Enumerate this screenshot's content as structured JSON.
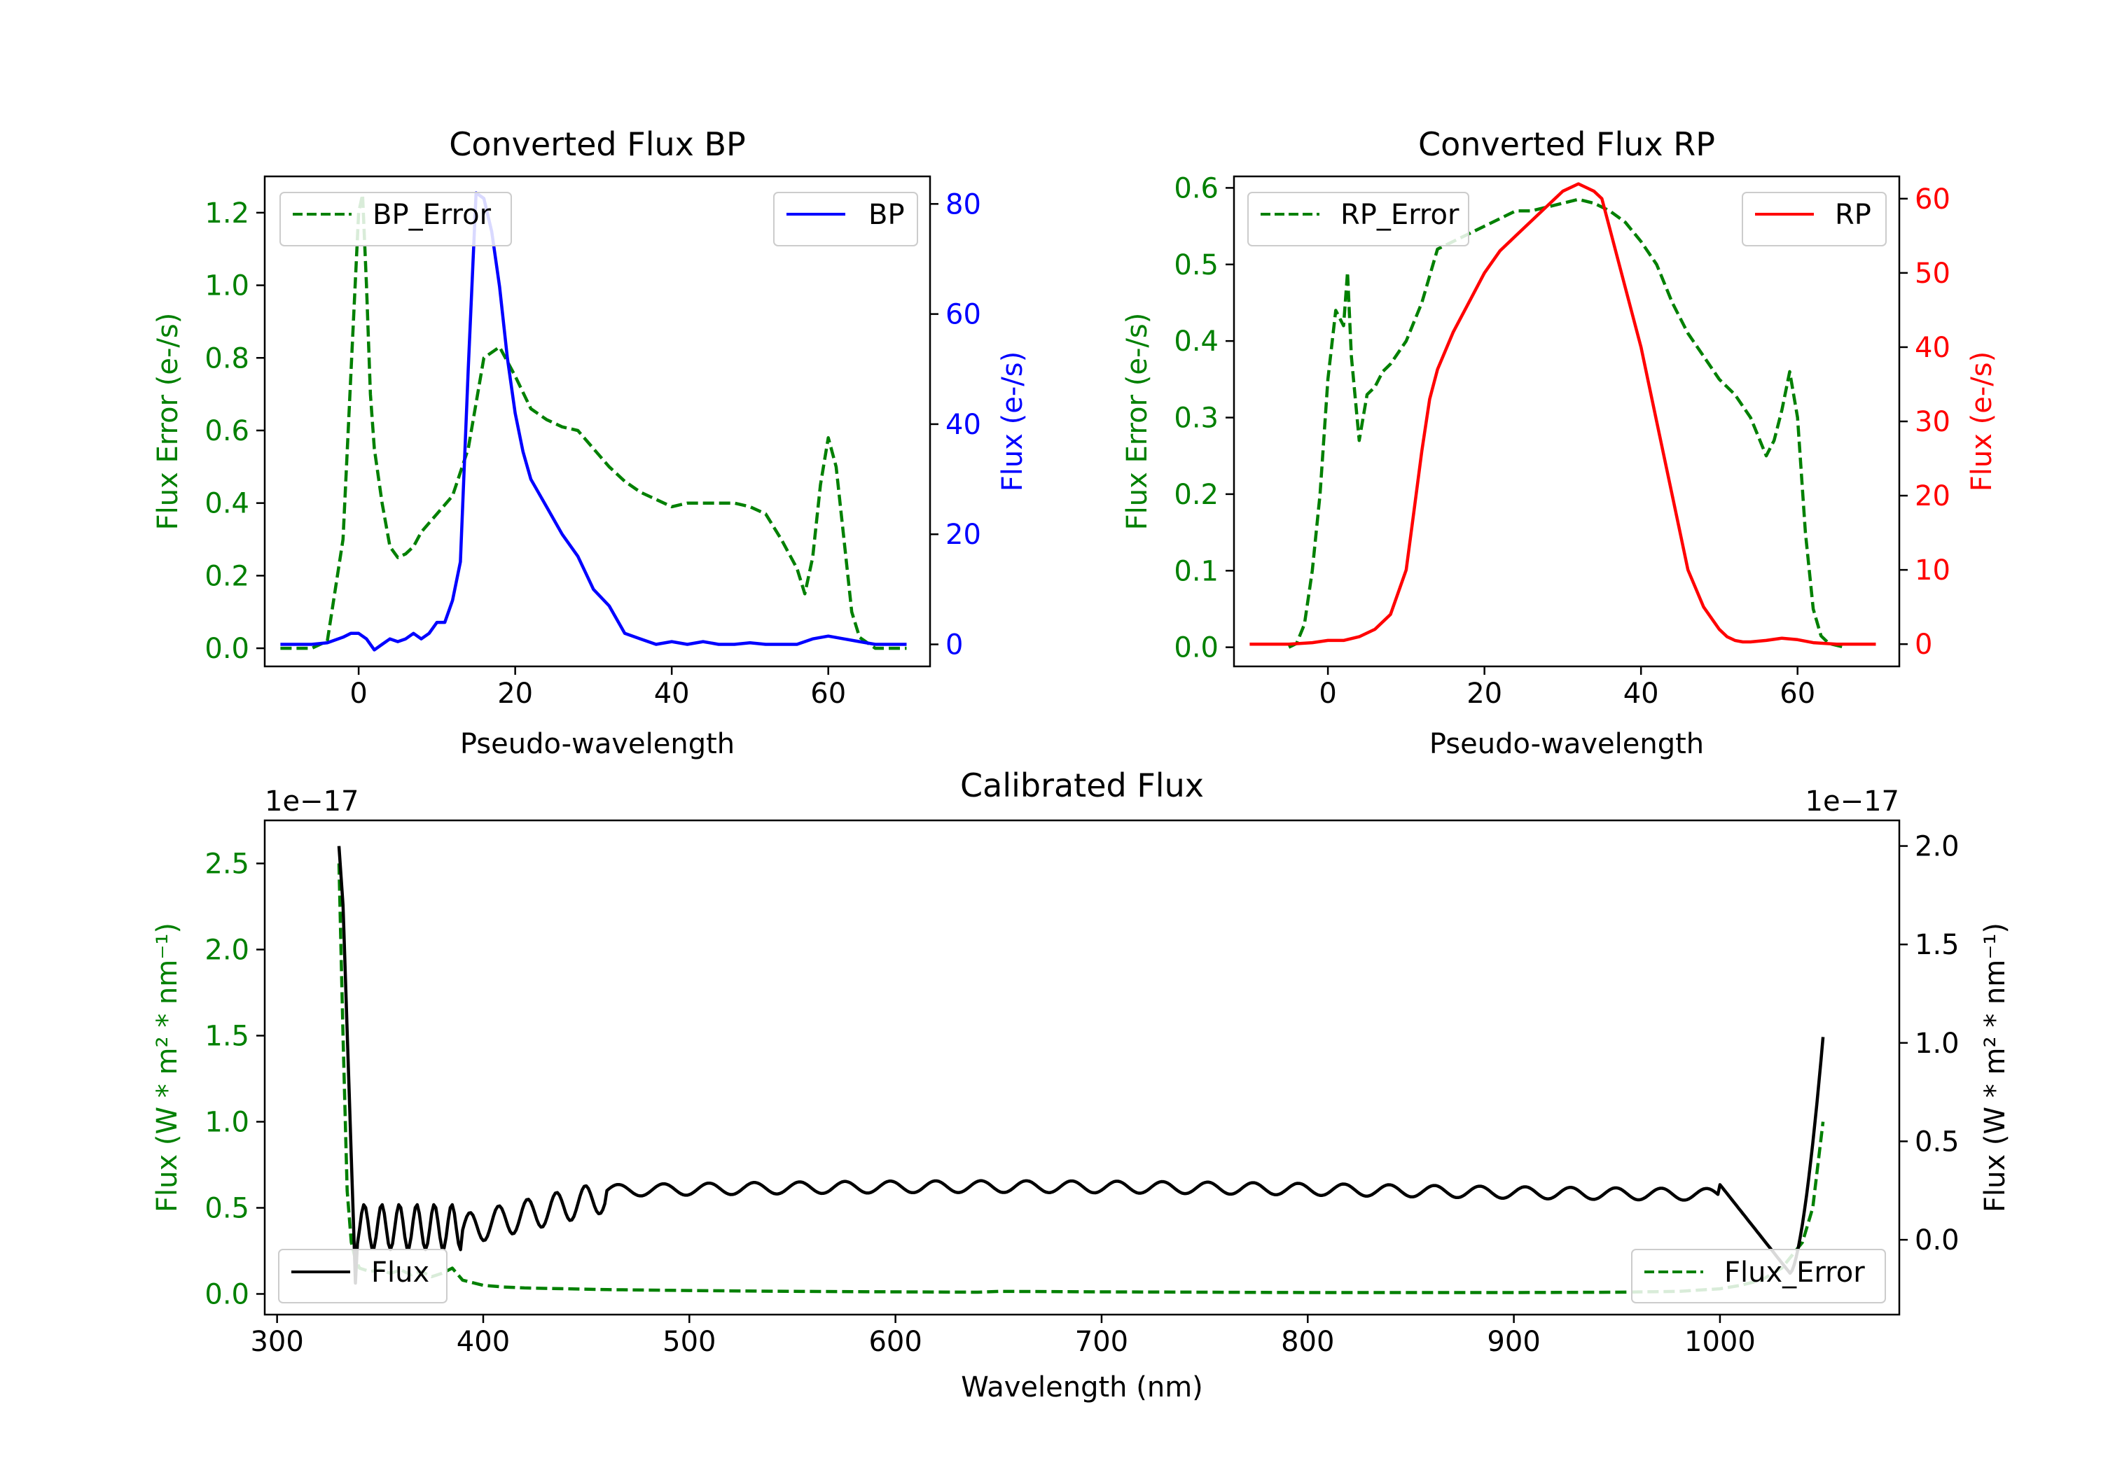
{
  "colors": {
    "green": "#008000",
    "blue": "#0000ff",
    "red": "#ff0000",
    "black": "#000000"
  },
  "chart_data": [
    {
      "type": "line",
      "title": "Converted Flux BP",
      "xlabel": "Pseudo-wavelength",
      "ylabel": "Flux Error (e-/s)",
      "ylabel_right": "Flux (e-/s)",
      "xlim": [
        -12,
        73
      ],
      "ylim": [
        -0.05,
        1.3
      ],
      "ylim_right": [
        -4,
        85
      ],
      "xticks": [
        0,
        20,
        40,
        60
      ],
      "yticks": [
        0.0,
        0.2,
        0.4,
        0.6,
        0.8,
        1.0,
        1.2
      ],
      "yticks_right": [
        0,
        20,
        40,
        60,
        80
      ],
      "legend_left": "BP_Error",
      "legend_right": "BP",
      "series": [
        {
          "name": "BP_Error",
          "axis": "left",
          "color": "#008000",
          "dash": true,
          "x": [
            -10,
            -6,
            -4,
            -2,
            -1,
            0,
            0.5,
            1,
            1.5,
            2,
            3,
            4,
            5,
            6,
            7,
            8,
            10,
            12,
            14,
            16,
            18,
            20,
            22,
            24,
            26,
            28,
            30,
            32,
            34,
            36,
            38,
            40,
            42,
            44,
            46,
            48,
            50,
            52,
            54,
            56,
            57,
            58,
            59,
            60,
            61,
            62,
            63,
            64,
            66,
            68,
            70
          ],
          "y": [
            0,
            0,
            0.02,
            0.3,
            0.75,
            1.2,
            1.25,
            1.0,
            0.7,
            0.55,
            0.4,
            0.28,
            0.25,
            0.26,
            0.28,
            0.32,
            0.37,
            0.42,
            0.55,
            0.8,
            0.83,
            0.75,
            0.66,
            0.63,
            0.61,
            0.6,
            0.55,
            0.5,
            0.46,
            0.43,
            0.41,
            0.39,
            0.4,
            0.4,
            0.4,
            0.4,
            0.39,
            0.37,
            0.3,
            0.22,
            0.15,
            0.25,
            0.45,
            0.58,
            0.5,
            0.3,
            0.1,
            0.03,
            0,
            0,
            0
          ]
        },
        {
          "name": "BP",
          "axis": "right",
          "color": "#0000ff",
          "dash": false,
          "x": [
            -10,
            -6,
            -4,
            -2,
            -1,
            0,
            1,
            2,
            3,
            4,
            5,
            6,
            7,
            8,
            9,
            10,
            11,
            12,
            13,
            14,
            15,
            16,
            17,
            18,
            19,
            20,
            21,
            22,
            24,
            26,
            28,
            30,
            32,
            34,
            36,
            38,
            40,
            42,
            44,
            46,
            48,
            50,
            52,
            54,
            56,
            58,
            60,
            62,
            64,
            66,
            70
          ],
          "y": [
            0,
            0,
            0.3,
            1.3,
            2,
            2,
            1,
            -1,
            0,
            1,
            0.5,
            1,
            2,
            1,
            2,
            4,
            4,
            8,
            15,
            50,
            82,
            81,
            75,
            65,
            52,
            42,
            35,
            30,
            25,
            20,
            16,
            10,
            7,
            2,
            1,
            0,
            0.5,
            0,
            0.5,
            0,
            0,
            0.3,
            0,
            0,
            0,
            1,
            1.5,
            1,
            0.5,
            0,
            0
          ]
        }
      ]
    },
    {
      "type": "line",
      "title": "Converted Flux RP",
      "xlabel": "Pseudo-wavelength",
      "ylabel": "Flux Error (e-/s)",
      "ylabel_right": "Flux (e-/s)",
      "xlim": [
        -12,
        73
      ],
      "ylim": [
        -0.025,
        0.615
      ],
      "ylim_right": [
        -3,
        63
      ],
      "xticks": [
        0,
        20,
        40,
        60
      ],
      "yticks": [
        0.0,
        0.1,
        0.2,
        0.3,
        0.4,
        0.5,
        0.6
      ],
      "yticks_right": [
        0,
        10,
        20,
        30,
        40,
        50,
        60
      ],
      "legend_left": "RP_Error",
      "legend_right": "RP",
      "series": [
        {
          "name": "RP_Error",
          "axis": "left",
          "color": "#008000",
          "dash": true,
          "x": [
            -5,
            -4,
            -3,
            -2,
            -1,
            0,
            1,
            2,
            2.5,
            3,
            4,
            5,
            6,
            7,
            8,
            10,
            12,
            14,
            16,
            18,
            20,
            22,
            24,
            26,
            28,
            30,
            32,
            34,
            36,
            38,
            40,
            42,
            44,
            46,
            48,
            50,
            52,
            54,
            56,
            57,
            58,
            59,
            60,
            61,
            62,
            63,
            64,
            66
          ],
          "y": [
            0,
            0.005,
            0.03,
            0.1,
            0.2,
            0.35,
            0.44,
            0.42,
            0.49,
            0.38,
            0.27,
            0.33,
            0.34,
            0.36,
            0.37,
            0.4,
            0.45,
            0.52,
            0.53,
            0.54,
            0.55,
            0.56,
            0.57,
            0.57,
            0.575,
            0.58,
            0.585,
            0.58,
            0.57,
            0.555,
            0.53,
            0.5,
            0.45,
            0.41,
            0.38,
            0.35,
            0.33,
            0.3,
            0.25,
            0.27,
            0.31,
            0.36,
            0.3,
            0.15,
            0.05,
            0.015,
            0.005,
            0
          ]
        },
        {
          "name": "RP",
          "axis": "right",
          "color": "#ff0000",
          "dash": false,
          "x": [
            -10,
            -5,
            -2,
            0,
            2,
            4,
            6,
            8,
            10,
            11,
            12,
            13,
            14,
            16,
            18,
            20,
            22,
            24,
            26,
            28,
            30,
            32,
            33,
            34,
            35,
            36,
            38,
            40,
            42,
            44,
            46,
            48,
            50,
            51,
            52,
            53,
            54,
            56,
            58,
            60,
            62,
            65,
            70
          ],
          "y": [
            0,
            0,
            0.2,
            0.5,
            0.5,
            1,
            2,
            4,
            10,
            18,
            26,
            33,
            37,
            42,
            46,
            50,
            53,
            55,
            57,
            59,
            61,
            62,
            61.5,
            61,
            60,
            56,
            48,
            40,
            30,
            20,
            10,
            5,
            2,
            1,
            0.5,
            0.3,
            0.3,
            0.5,
            0.8,
            0.6,
            0.2,
            0,
            0
          ]
        }
      ]
    },
    {
      "type": "line",
      "title": "Calibrated Flux",
      "xlabel": "Wavelength (nm)",
      "ylabel": "Flux (W * m² * nm⁻¹)",
      "ylabel_right": "Flux (W * m² * nm⁻¹)",
      "offset_text_left": "1e−17",
      "offset_text_right": "1e−17",
      "xlim": [
        294,
        1087
      ],
      "ylim": [
        -0.12,
        2.75
      ],
      "ylim_right": [
        -0.38,
        2.13
      ],
      "xticks": [
        300,
        400,
        500,
        600,
        700,
        800,
        900,
        1000
      ],
      "yticks": [
        0.0,
        0.5,
        1.0,
        1.5,
        2.0,
        2.5
      ],
      "yticks_right": [
        0.0,
        0.5,
        1.0,
        1.5,
        2.0
      ],
      "legend_left": "Flux",
      "legend_right": "Flux_Error",
      "series": [
        {
          "name": "Flux_Error",
          "axis": "left",
          "color": "#008000",
          "dash": true,
          "x": [
            330,
            332,
            334,
            336,
            338,
            340,
            345,
            350,
            355,
            360,
            365,
            370,
            375,
            380,
            385,
            390,
            400,
            410,
            420,
            440,
            460,
            500,
            550,
            600,
            640,
            650,
            700,
            750,
            800,
            850,
            900,
            950,
            980,
            1000,
            1010,
            1020,
            1030,
            1040,
            1045,
            1050
          ],
          "y": [
            2.5,
            1.5,
            0.6,
            0.3,
            0.2,
            0.15,
            0.13,
            0.14,
            0.12,
            0.14,
            0.11,
            0.13,
            0.1,
            0.12,
            0.15,
            0.08,
            0.05,
            0.04,
            0.035,
            0.03,
            0.025,
            0.02,
            0.015,
            0.012,
            0.01,
            0.015,
            0.012,
            0.01,
            0.008,
            0.008,
            0.008,
            0.01,
            0.015,
            0.03,
            0.05,
            0.08,
            0.15,
            0.3,
            0.5,
            1.0
          ]
        }
      ]
    }
  ]
}
